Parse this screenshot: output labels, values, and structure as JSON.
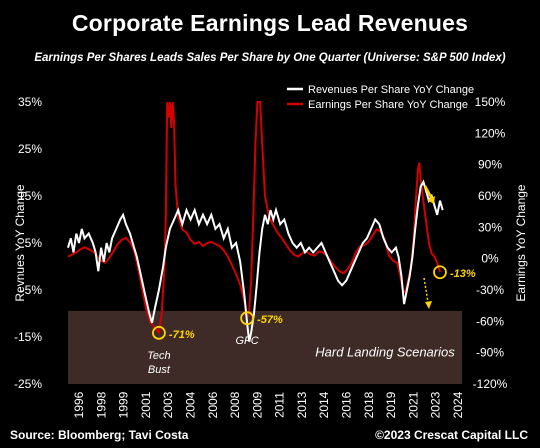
{
  "title": "Corporate Earnings Lead Revenues",
  "subtitle": "Earnings Per Shares Leads Sales Per Share by One Quarter (Universe: S&P 500 Index)",
  "footer": {
    "source": "Source: Bloomberg; Tavi Costa",
    "copyright": "©2023 Crescat Capital LLC"
  },
  "colors": {
    "background": "#000000",
    "revenue": "#ffffff",
    "earnings": "#d40000",
    "hard_landing": "#3e2a26",
    "annotation": "#ffd400"
  },
  "chart_data": {
    "type": "line",
    "x_ticks": [
      "1996",
      "1998",
      "1999",
      "2001",
      "2003",
      "2004",
      "2006",
      "2008",
      "2009",
      "2011",
      "2013",
      "2014",
      "2016",
      "2018",
      "2019",
      "2021",
      "2023",
      "2024"
    ],
    "xlim": [
      1996,
      2024.6
    ],
    "y_left": {
      "label": "Revnues YoY Change",
      "ticks": [
        "35%",
        "25%",
        "15%",
        "5%",
        "-5%",
        "-15%",
        "-25%"
      ],
      "lim": [
        -25,
        35
      ]
    },
    "y_right": {
      "label": "Earnings YoY Change",
      "ticks": [
        "150%",
        "120%",
        "90%",
        "60%",
        "30%",
        "0%",
        "-30%",
        "-60%",
        "-90%",
        "-120%"
      ],
      "lim": [
        -120,
        150
      ]
    },
    "legend": {
      "position": "top-right",
      "entries": [
        "Revenues Per Share YoY Change",
        "Earnings Per Share YoY Change"
      ]
    },
    "shaded_region": {
      "label": "Hard Landing Scenarios",
      "axis": "right",
      "from": -120,
      "to": -50
    },
    "annotations": [
      {
        "text": "-71%",
        "x": 2002.6,
        "y_right": -71,
        "caption": [
          "Tech",
          "Bust"
        ]
      },
      {
        "text": "-57%",
        "x": 2009.0,
        "y_right": -57,
        "caption": [
          "GFC"
        ]
      },
      {
        "text": "-13%",
        "x": 2023.0,
        "y_right": -13,
        "caption": []
      }
    ],
    "series": [
      {
        "name": "Revenues Per Share YoY Change",
        "axis": "left",
        "points": [
          [
            1996.0,
            4
          ],
          [
            1996.2,
            6
          ],
          [
            1996.4,
            3
          ],
          [
            1996.6,
            7
          ],
          [
            1996.8,
            5
          ],
          [
            1997.0,
            8
          ],
          [
            1997.2,
            6
          ],
          [
            1997.5,
            7
          ],
          [
            1997.8,
            5
          ],
          [
            1998.0,
            3
          ],
          [
            1998.2,
            -1
          ],
          [
            1998.4,
            4
          ],
          [
            1998.6,
            1
          ],
          [
            1998.8,
            5
          ],
          [
            1999.0,
            3
          ],
          [
            1999.2,
            6
          ],
          [
            1999.5,
            8
          ],
          [
            1999.8,
            10
          ],
          [
            2000.0,
            11
          ],
          [
            2000.2,
            9
          ],
          [
            2000.5,
            7
          ],
          [
            2000.8,
            4
          ],
          [
            2001.0,
            2
          ],
          [
            2001.3,
            -2
          ],
          [
            2001.6,
            -6
          ],
          [
            2001.9,
            -10
          ],
          [
            2002.1,
            -12
          ],
          [
            2002.3,
            -9
          ],
          [
            2002.6,
            -5
          ],
          [
            2002.9,
            0
          ],
          [
            2003.1,
            4
          ],
          [
            2003.4,
            8
          ],
          [
            2003.7,
            10
          ],
          [
            2004.0,
            12
          ],
          [
            2004.3,
            9
          ],
          [
            2004.6,
            12
          ],
          [
            2004.9,
            10
          ],
          [
            2005.2,
            12
          ],
          [
            2005.5,
            9
          ],
          [
            2005.8,
            11
          ],
          [
            2006.1,
            9
          ],
          [
            2006.4,
            11
          ],
          [
            2006.7,
            8
          ],
          [
            2007.0,
            9
          ],
          [
            2007.3,
            6
          ],
          [
            2007.6,
            8
          ],
          [
            2007.9,
            4
          ],
          [
            2008.2,
            5
          ],
          [
            2008.5,
            1
          ],
          [
            2008.8,
            -6
          ],
          [
            2009.0,
            -12
          ],
          [
            2009.15,
            -16
          ],
          [
            2009.3,
            -14
          ],
          [
            2009.5,
            -10
          ],
          [
            2009.7,
            -4
          ],
          [
            2009.9,
            3
          ],
          [
            2010.1,
            8
          ],
          [
            2010.3,
            11
          ],
          [
            2010.5,
            9
          ],
          [
            2010.7,
            12
          ],
          [
            2010.9,
            10
          ],
          [
            2011.1,
            12
          ],
          [
            2011.4,
            9
          ],
          [
            2011.7,
            10
          ],
          [
            2012.0,
            7
          ],
          [
            2012.3,
            5
          ],
          [
            2012.6,
            4
          ],
          [
            2012.9,
            5
          ],
          [
            2013.2,
            3
          ],
          [
            2013.5,
            4
          ],
          [
            2013.8,
            3
          ],
          [
            2014.1,
            4
          ],
          [
            2014.4,
            5
          ],
          [
            2014.7,
            3
          ],
          [
            2015.0,
            1
          ],
          [
            2015.3,
            -1
          ],
          [
            2015.6,
            -3
          ],
          [
            2015.9,
            -4
          ],
          [
            2016.2,
            -3
          ],
          [
            2016.5,
            -1
          ],
          [
            2016.8,
            1
          ],
          [
            2017.1,
            3
          ],
          [
            2017.4,
            5
          ],
          [
            2017.7,
            6
          ],
          [
            2018.0,
            8
          ],
          [
            2018.3,
            10
          ],
          [
            2018.6,
            9
          ],
          [
            2018.9,
            6
          ],
          [
            2019.2,
            4
          ],
          [
            2019.5,
            3
          ],
          [
            2019.8,
            4
          ],
          [
            2020.0,
            2
          ],
          [
            2020.2,
            -2
          ],
          [
            2020.4,
            -8
          ],
          [
            2020.6,
            -5
          ],
          [
            2020.8,
            -2
          ],
          [
            2021.0,
            2
          ],
          [
            2021.2,
            8
          ],
          [
            2021.4,
            13
          ],
          [
            2021.6,
            17
          ],
          [
            2021.8,
            18
          ],
          [
            2022.0,
            16
          ],
          [
            2022.2,
            14
          ],
          [
            2022.4,
            15
          ],
          [
            2022.6,
            13
          ],
          [
            2022.8,
            11
          ],
          [
            2023.0,
            14
          ],
          [
            2023.2,
            12
          ]
        ]
      },
      {
        "name": "Earnings Per Share YoY Change",
        "axis": "right",
        "points": [
          [
            1996.0,
            2
          ],
          [
            1996.3,
            4
          ],
          [
            1996.6,
            6
          ],
          [
            1996.9,
            9
          ],
          [
            1997.2,
            11
          ],
          [
            1997.5,
            9
          ],
          [
            1997.8,
            7
          ],
          [
            1998.1,
            3
          ],
          [
            1998.4,
            -2
          ],
          [
            1998.7,
            -4
          ],
          [
            1999.0,
            1
          ],
          [
            1999.3,
            7
          ],
          [
            1999.6,
            14
          ],
          [
            1999.9,
            18
          ],
          [
            2000.2,
            20
          ],
          [
            2000.5,
            16
          ],
          [
            2000.8,
            8
          ],
          [
            2001.1,
            -10
          ],
          [
            2001.4,
            -30
          ],
          [
            2001.7,
            -50
          ],
          [
            2002.0,
            -62
          ],
          [
            2002.3,
            -66
          ],
          [
            2002.6,
            -71
          ],
          [
            2002.8,
            -52
          ],
          [
            2003.0,
            -10
          ],
          [
            2003.1,
            40
          ],
          [
            2003.2,
            150
          ],
          [
            2003.3,
            135
          ],
          [
            2003.4,
            150
          ],
          [
            2003.5,
            125
          ],
          [
            2003.6,
            150
          ],
          [
            2003.7,
            130
          ],
          [
            2003.8,
            70
          ],
          [
            2004.0,
            40
          ],
          [
            2004.3,
            28
          ],
          [
            2004.6,
            25
          ],
          [
            2004.9,
            18
          ],
          [
            2005.2,
            14
          ],
          [
            2005.5,
            16
          ],
          [
            2005.8,
            12
          ],
          [
            2006.1,
            15
          ],
          [
            2006.4,
            16
          ],
          [
            2006.7,
            14
          ],
          [
            2007.0,
            12
          ],
          [
            2007.3,
            8
          ],
          [
            2007.6,
            2
          ],
          [
            2007.9,
            -6
          ],
          [
            2008.2,
            -15
          ],
          [
            2008.5,
            -25
          ],
          [
            2008.8,
            -40
          ],
          [
            2009.0,
            -57
          ],
          [
            2009.15,
            -50
          ],
          [
            2009.3,
            -20
          ],
          [
            2009.45,
            40
          ],
          [
            2009.6,
            110
          ],
          [
            2009.75,
            150
          ],
          [
            2009.95,
            150
          ],
          [
            2010.1,
            110
          ],
          [
            2010.3,
            60
          ],
          [
            2010.6,
            40
          ],
          [
            2010.9,
            32
          ],
          [
            2011.2,
            25
          ],
          [
            2011.5,
            20
          ],
          [
            2011.8,
            14
          ],
          [
            2012.1,
            8
          ],
          [
            2012.4,
            4
          ],
          [
            2012.7,
            2
          ],
          [
            2013.0,
            5
          ],
          [
            2013.3,
            7
          ],
          [
            2013.6,
            4
          ],
          [
            2013.9,
            3
          ],
          [
            2014.2,
            7
          ],
          [
            2014.5,
            6
          ],
          [
            2014.8,
            3
          ],
          [
            2015.1,
            -3
          ],
          [
            2015.4,
            -8
          ],
          [
            2015.7,
            -12
          ],
          [
            2016.0,
            -14
          ],
          [
            2016.3,
            -10
          ],
          [
            2016.6,
            -4
          ],
          [
            2016.9,
            6
          ],
          [
            2017.2,
            12
          ],
          [
            2017.5,
            13
          ],
          [
            2017.8,
            16
          ],
          [
            2018.1,
            22
          ],
          [
            2018.4,
            28
          ],
          [
            2018.7,
            26
          ],
          [
            2019.0,
            18
          ],
          [
            2019.3,
            3
          ],
          [
            2019.6,
            -2
          ],
          [
            2019.9,
            -4
          ],
          [
            2020.1,
            -15
          ],
          [
            2020.3,
            -30
          ],
          [
            2020.5,
            -32
          ],
          [
            2020.7,
            -20
          ],
          [
            2020.9,
            -8
          ],
          [
            2021.1,
            20
          ],
          [
            2021.25,
            55
          ],
          [
            2021.4,
            85
          ],
          [
            2021.5,
            92
          ],
          [
            2021.6,
            75
          ],
          [
            2021.8,
            55
          ],
          [
            2022.0,
            35
          ],
          [
            2022.2,
            15
          ],
          [
            2022.4,
            5
          ],
          [
            2022.6,
            2
          ],
          [
            2022.8,
            -4
          ],
          [
            2023.0,
            -13
          ]
        ]
      }
    ]
  }
}
